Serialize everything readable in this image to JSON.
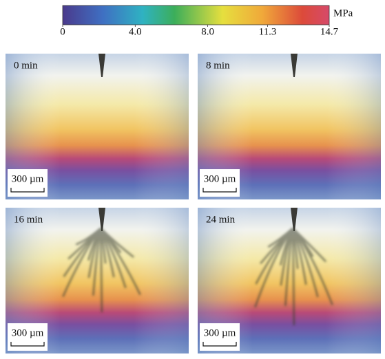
{
  "colorbar": {
    "unit": "MPa",
    "range": [
      0,
      14.7
    ],
    "ticks": [
      0,
      {
        "value": 4.0,
        "label": "4.0"
      },
      {
        "value": 8.0,
        "label": "8.0"
      },
      11.3,
      14.7
    ]
  },
  "panels": [
    {
      "label": "0 min",
      "scale_bar": "300 µm"
    },
    {
      "label": "8 min",
      "scale_bar": "300 µm"
    },
    {
      "label": "16 min",
      "scale_bar": "300 µm"
    },
    {
      "label": "24 min",
      "scale_bar": "300 µm"
    }
  ]
}
